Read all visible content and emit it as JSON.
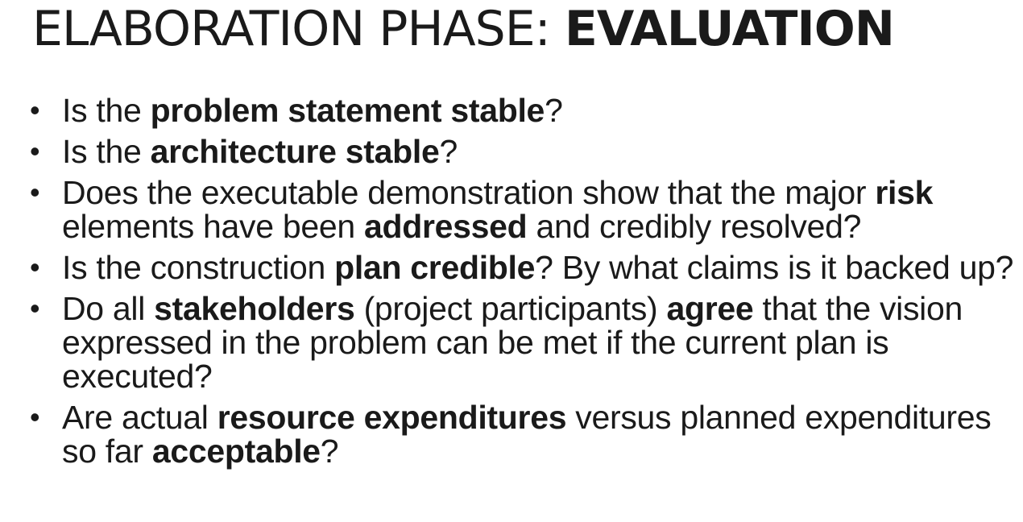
{
  "title": {
    "light": "ELABORATION PHASE: ",
    "bold": "EVALUATION"
  },
  "bullet_symbol": "•",
  "bullets": [
    [
      {
        "text": "Is the ",
        "bold": false
      },
      {
        "text": "problem statement stable",
        "bold": true
      },
      {
        "text": "?",
        "bold": false
      }
    ],
    [
      {
        "text": "Is the ",
        "bold": false
      },
      {
        "text": "architecture stable",
        "bold": true
      },
      {
        "text": "?",
        "bold": false
      }
    ],
    [
      {
        "text": "Does the executable demonstration show that the major ",
        "bold": false
      },
      {
        "text": "risk",
        "bold": true
      },
      {
        "text": " elements have been ",
        "bold": false
      },
      {
        "text": "addressed",
        "bold": true
      },
      {
        "text": " and credibly resolved?",
        "bold": false
      }
    ],
    [
      {
        "text": "Is the construction ",
        "bold": false
      },
      {
        "text": "plan credible",
        "bold": true
      },
      {
        "text": "? By what claims is it backed up?",
        "bold": false
      }
    ],
    [
      {
        "text": "Do all ",
        "bold": false
      },
      {
        "text": "stakeholders",
        "bold": true
      },
      {
        "text": " (project participants) ",
        "bold": false
      },
      {
        "text": "agree",
        "bold": true
      },
      {
        "text": " that the vision expressed in the problem can be met if the current plan is executed?",
        "bold": false
      }
    ],
    [
      {
        "text": "Are actual ",
        "bold": false
      },
      {
        "text": "resource expenditures",
        "bold": true
      },
      {
        "text": " versus planned expenditures so far ",
        "bold": false
      },
      {
        "text": "acceptable",
        "bold": true
      },
      {
        "text": "?",
        "bold": false
      }
    ]
  ]
}
